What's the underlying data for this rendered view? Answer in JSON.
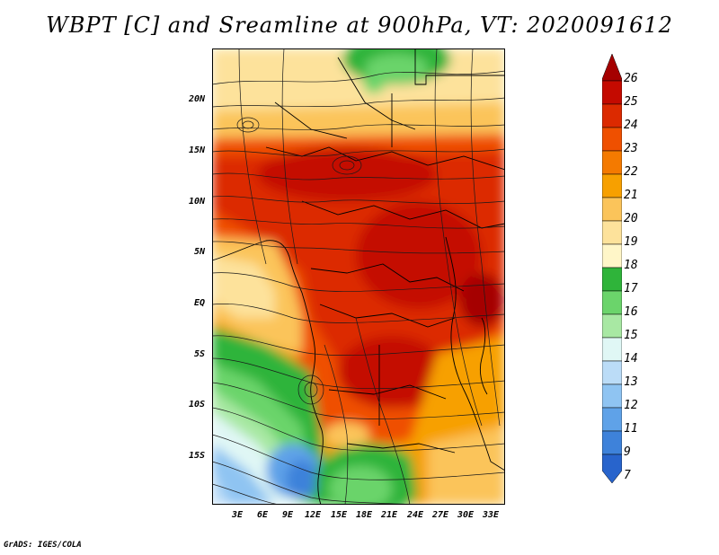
{
  "title": "WBPT [C] and Sreamline at 900hPa, VT: 2020091612",
  "credit": "GrADS: IGES/COLA",
  "lat_labels": [
    "20N",
    "15N",
    "10N",
    "5N",
    "EQ",
    "5S",
    "10S",
    "15S"
  ],
  "lon_labels": [
    "3E",
    "6E",
    "9E",
    "12E",
    "15E",
    "18E",
    "21E",
    "24E",
    "27E",
    "30E",
    "33E"
  ],
  "colorbar": {
    "labels": [
      "26",
      "25",
      "24",
      "23",
      "22",
      "21",
      "20",
      "19",
      "18",
      "17",
      "16",
      "15",
      "14",
      "13",
      "12",
      "11",
      "9",
      "7"
    ],
    "colors": [
      "#a50000",
      "#c40a00",
      "#dc2a00",
      "#ef5000",
      "#f47a00",
      "#f7a000",
      "#fbc45a",
      "#fde29b",
      "#fff6c8",
      "#2fb43a",
      "#6bd46b",
      "#a8e8a3",
      "#e0f7f5",
      "#bbdcf7",
      "#8fc4f2",
      "#5fa2e8",
      "#3e82da",
      "#2864cc"
    ]
  },
  "colors": {
    "frame": "#000000",
    "streamline": "#1a1a1a",
    "coast": "#000000"
  }
}
